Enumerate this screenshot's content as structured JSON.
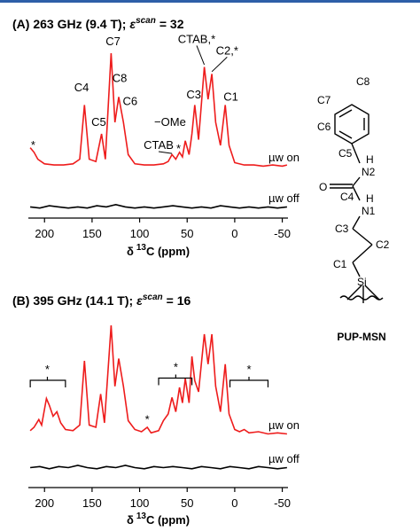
{
  "chart_data": [
    {
      "type": "line",
      "title": "(A) 263 GHz (9.4 T);",
      "title_symbol": "ε",
      "title_superscript": "scan",
      "title_value": "= 32",
      "xlabel": "δ",
      "xlabel_superscript": "13",
      "xlabel_unit": "C (ppm)",
      "xlim": [
        217,
        -56
      ],
      "xticks": [
        200,
        150,
        100,
        50,
        0,
        -50
      ],
      "series": [
        {
          "name": "µw on",
          "color": "#ee1c1c",
          "x": [
            215,
            211,
            207,
            200,
            190,
            180,
            170,
            163,
            158,
            153,
            146,
            140,
            136,
            130,
            126,
            122,
            117,
            112,
            105,
            95,
            85,
            75,
            70,
            66,
            62,
            58,
            55,
            52,
            48,
            45,
            42,
            38,
            32,
            28,
            24,
            20,
            15,
            10,
            6,
            0,
            -10,
            -20,
            -30,
            -40,
            -50,
            -55
          ],
          "values": [
            18,
            14,
            8,
            4,
            3,
            3,
            4,
            8,
            55,
            8,
            6,
            30,
            8,
            100,
            40,
            62,
            40,
            12,
            4,
            3,
            3,
            4,
            6,
            12,
            8,
            14,
            10,
            24,
            12,
            30,
            55,
            25,
            88,
            60,
            82,
            40,
            20,
            55,
            20,
            5,
            3,
            3,
            2,
            3,
            2,
            3
          ]
        },
        {
          "name": "µw off",
          "color": "#000000",
          "x": [
            215,
            205,
            195,
            185,
            175,
            165,
            155,
            145,
            135,
            125,
            115,
            105,
            95,
            85,
            75,
            65,
            55,
            45,
            35,
            25,
            15,
            5,
            -5,
            -15,
            -25,
            -35,
            -45,
            -55
          ],
          "values": [
            2,
            1,
            3,
            2,
            1,
            2,
            1,
            3,
            2,
            4,
            2,
            1,
            2,
            1,
            2,
            3,
            2,
            1,
            2,
            1,
            3,
            2,
            1,
            2,
            1,
            2,
            1,
            2
          ]
        }
      ],
      "annotations": [
        {
          "text": "*",
          "x": 212,
          "y": 20
        },
        {
          "text": "C4",
          "x": 161,
          "y": 70
        },
        {
          "text": "C5",
          "x": 143,
          "y": 40
        },
        {
          "text": "C7",
          "x": 128,
          "y": 110
        },
        {
          "text": "C8",
          "x": 121,
          "y": 78
        },
        {
          "text": "C6",
          "x": 110,
          "y": 58
        },
        {
          "text": "−OMe",
          "x": 68,
          "y": 40
        },
        {
          "text": "CTAB",
          "x": 80,
          "y": 20,
          "point": [
            66,
            13
          ]
        },
        {
          "text": "*",
          "x": 59,
          "y": 17
        },
        {
          "text": "C3",
          "x": 43,
          "y": 64
        },
        {
          "text": "CTAB,*",
          "x": 40,
          "y": 112,
          "point": [
            32,
            90
          ]
        },
        {
          "text": "C2,*",
          "x": 8,
          "y": 102,
          "point": [
            24,
            84
          ]
        },
        {
          "text": "C1",
          "x": 4,
          "y": 62
        }
      ]
    },
    {
      "type": "line",
      "title": "(B) 395 GHz (14.1 T);",
      "title_symbol": "ε",
      "title_superscript": "scan",
      "title_value": "= 16",
      "xlabel": "δ",
      "xlabel_superscript": "13",
      "xlabel_unit": "C (ppm)",
      "xlim": [
        217,
        -56
      ],
      "xticks": [
        200,
        150,
        100,
        50,
        0,
        -50
      ],
      "series": [
        {
          "name": "µw on",
          "color": "#ee1c1c",
          "x": [
            215,
            211,
            206,
            203,
            198,
            195,
            191,
            187,
            183,
            178,
            170,
            163,
            158,
            153,
            146,
            141,
            137,
            130,
            126,
            122,
            117,
            112,
            105,
            98,
            92,
            88,
            80,
            75,
            70,
            66,
            62,
            58,
            55,
            52,
            48,
            45,
            42,
            38,
            32,
            28,
            24,
            20,
            15,
            10,
            6,
            0,
            -5,
            -10,
            -15,
            -25,
            -35,
            -45,
            -55
          ],
          "values": [
            5,
            8,
            15,
            10,
            34,
            28,
            18,
            22,
            12,
            6,
            5,
            10,
            68,
            10,
            8,
            38,
            12,
            100,
            45,
            70,
            45,
            14,
            6,
            4,
            8,
            3,
            5,
            14,
            20,
            35,
            22,
            44,
            30,
            52,
            30,
            72,
            50,
            40,
            92,
            65,
            92,
            45,
            22,
            65,
            20,
            6,
            4,
            6,
            3,
            4,
            2,
            3,
            2
          ]
        },
        {
          "name": "µw off",
          "color": "#000000",
          "x": [
            215,
            205,
            195,
            185,
            175,
            165,
            155,
            145,
            135,
            125,
            115,
            105,
            95,
            85,
            75,
            65,
            55,
            45,
            35,
            25,
            15,
            5,
            -5,
            -15,
            -25,
            -35,
            -45,
            -55
          ],
          "values": [
            2,
            3,
            1,
            3,
            2,
            4,
            2,
            1,
            3,
            2,
            4,
            2,
            1,
            3,
            2,
            3,
            2,
            1,
            3,
            2,
            1,
            3,
            2,
            1,
            3,
            2,
            1,
            2
          ]
        }
      ],
      "annotations": [
        {
          "text": "*",
          "x": 197,
          "y": 60,
          "bracket": [
            215,
            178
          ]
        },
        {
          "text": "*",
          "x": 92,
          "y": 15
        },
        {
          "text": "*",
          "x": 62,
          "y": 62,
          "bracket": [
            80,
            45
          ]
        },
        {
          "text": "*",
          "x": -15,
          "y": 60,
          "bracket": [
            5,
            -35
          ]
        }
      ]
    }
  ],
  "molecule": {
    "labels": [
      "C8",
      "C7",
      "C6",
      "C5",
      "H",
      "N2",
      "O",
      "C4",
      "H",
      "N1",
      "C3",
      "C2",
      "C1",
      "Si"
    ],
    "name": "PUP-MSN"
  }
}
